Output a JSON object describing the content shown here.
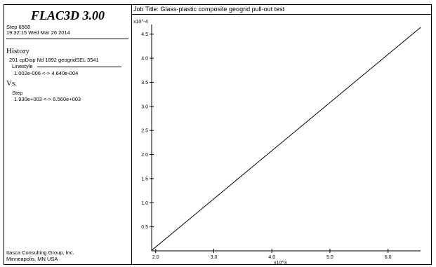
{
  "header": {
    "title": "FLAC3D 3.00",
    "step": "Step 6568",
    "datetime": "19:32:15 Wed Mar 26 2014"
  },
  "history": {
    "heading": "History",
    "item": "201 cpDisp Nd 1892 geogridSEL 3541",
    "linestyle": "Linestyle",
    "range": "1.002e-006 <-> 4.640e-004"
  },
  "vs": {
    "heading": "Vs.",
    "label": "Step",
    "range": "1.930e+003 <-> 6.560e+003"
  },
  "footer": {
    "line1": "Itasca Consulting Group, Inc.",
    "line2": "Minneapolis, MN  USA"
  },
  "job_title": "Job Title: Glass-plastic composite geogrid pull-out test",
  "chart_data": {
    "type": "line",
    "title": "",
    "xlabel": "",
    "ylabel": "",
    "x_multiplier_label": "x10^3",
    "y_multiplier_label": "x10^-4",
    "xlim": [
      1.93,
      6.56
    ],
    "ylim": [
      0.0,
      4.7
    ],
    "x_ticks": [
      2.0,
      3.0,
      4.0,
      5.0,
      6.0
    ],
    "x_tick_labels": [
      "2.0",
      "3.0",
      "4.0",
      "5.0",
      "6.0"
    ],
    "y_ticks": [
      0.5,
      1.0,
      1.5,
      2.0,
      2.5,
      3.0,
      3.5,
      4.0,
      4.5
    ],
    "y_tick_labels": [
      "0.5",
      "1.0",
      "1.5",
      "2.0",
      "2.5",
      "3.0",
      "3.5",
      "4.0",
      "4.5"
    ],
    "series": [
      {
        "x": [
          1.93,
          6.56
        ],
        "y": [
          0.01,
          4.64
        ]
      }
    ],
    "line_color": "#000000",
    "grid": false
  }
}
